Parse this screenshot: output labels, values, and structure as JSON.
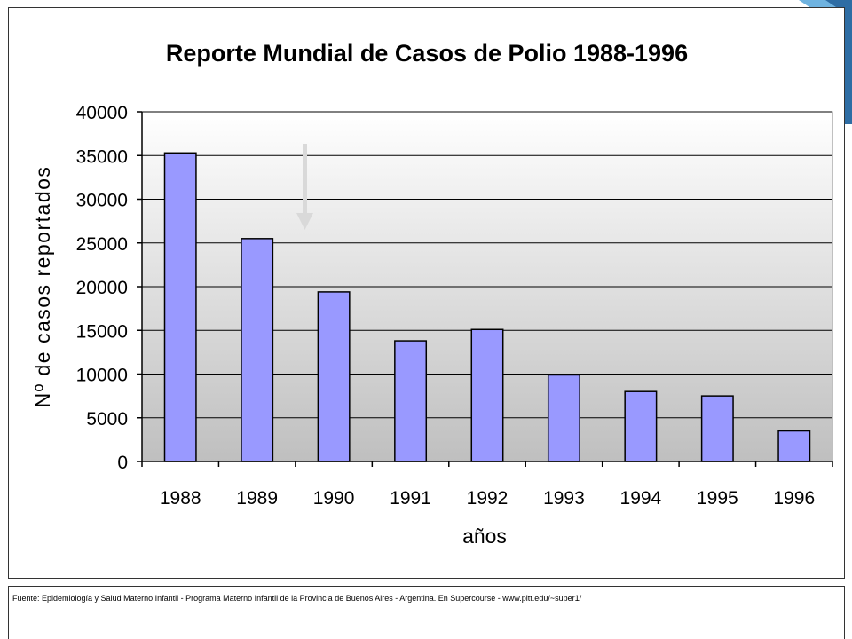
{
  "colors": {
    "bar_fill": "#9999ff",
    "bar_stroke": "#000000",
    "plot_bg_top": "#ffffff",
    "plot_bg_bottom": "#bfbfbf",
    "gridline": "#000000",
    "deco_blue_dark": "#2e6da4",
    "deco_blue_light": "#6fb3e0",
    "arrow": "#d9d9d9"
  },
  "chart_data": {
    "type": "bar",
    "title": "Reporte Mundial de Casos de Polio 1988-1996",
    "xlabel": "años",
    "ylabel": "Nº de casos reportados",
    "categories": [
      "1988",
      "1989",
      "1990",
      "1991",
      "1992",
      "1993",
      "1994",
      "1995",
      "1996"
    ],
    "values": [
      35300,
      25500,
      19400,
      13800,
      15100,
      9900,
      8000,
      7500,
      3500
    ],
    "ylim": [
      0,
      40000
    ],
    "yticks": [
      "0",
      "5000",
      "10000",
      "15000",
      "20000",
      "25000",
      "30000",
      "35000",
      "40000"
    ],
    "grid": true,
    "legend": "none"
  },
  "footer": {
    "source": "Fuente: Epidemiología y Salud Materno Infantil - Programa Materno Infantil de la Provincia de Buenos Aires - Argentina. En Supercourse - www.pitt.edu/~super1/"
  }
}
